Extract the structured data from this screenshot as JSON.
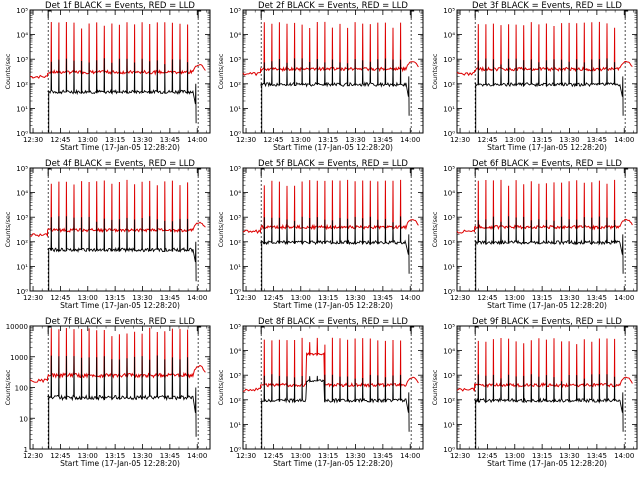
{
  "colors": {
    "events": "#000000",
    "lld": "#dd0000",
    "background": "#ffffff"
  },
  "chart_data": [
    {
      "type": "line",
      "title": "Det 1f BLACK = Events, RED = LLD",
      "xlabel": "Start Time (17-Jan-05 12:28:20)",
      "ylabel": "Counts/sec",
      "yscale": "log",
      "ylim": [
        1,
        100000
      ],
      "y_tick_labels": [
        "10⁰",
        "10¹",
        "10²",
        "10³",
        "10⁴",
        "10⁵"
      ],
      "x_tick_labels": [
        "12:30",
        "12:45",
        "13:00",
        "13:15",
        "13:30",
        "13:45",
        "14:00"
      ],
      "series": [
        {
          "name": "BLACK = Events",
          "base": 50,
          "peak": 1100
        },
        {
          "name": "RED = LLD",
          "base": 300,
          "peak": 30000
        }
      ],
      "variant": "normal"
    },
    {
      "type": "line",
      "title": "Det 2f BLACK = Events, RED = LLD",
      "xlabel": "Start Time (17-Jan-05 12:28:20)",
      "ylabel": "Counts/sec",
      "yscale": "log",
      "ylim": [
        1,
        100000
      ],
      "y_tick_labels": [
        "10⁰",
        "10¹",
        "10²",
        "10³",
        "10⁴",
        "10⁵"
      ],
      "x_tick_labels": [
        "12:30",
        "12:45",
        "13:00",
        "13:15",
        "13:30",
        "13:45",
        "14:00"
      ],
      "series": [
        {
          "name": "BLACK = Events",
          "base": 100,
          "peak": 1100
        },
        {
          "name": "RED = LLD",
          "base": 400,
          "peak": 30000
        }
      ],
      "variant": "normal"
    },
    {
      "type": "line",
      "title": "Det 3f BLACK = Events, RED = LLD",
      "xlabel": "Start Time (17-Jan-05 12:28:20)",
      "ylabel": "Counts/sec",
      "yscale": "log",
      "ylim": [
        1,
        100000
      ],
      "y_tick_labels": [
        "10⁰",
        "10¹",
        "10²",
        "10³",
        "10⁴",
        "10⁵"
      ],
      "x_tick_labels": [
        "12:30",
        "12:45",
        "13:00",
        "13:15",
        "13:30",
        "13:45",
        "14:00"
      ],
      "series": [
        {
          "name": "BLACK = Events",
          "base": 100,
          "peak": 1100
        },
        {
          "name": "RED = LLD",
          "base": 400,
          "peak": 30000
        }
      ],
      "variant": "normal"
    },
    {
      "type": "line",
      "title": "Det 4f BLACK = Events, RED = LLD",
      "xlabel": "Start Time (17-Jan-05 12:28:20)",
      "ylabel": "Counts/sec",
      "yscale": "log",
      "ylim": [
        1,
        100000
      ],
      "y_tick_labels": [
        "10⁰",
        "10¹",
        "10²",
        "10³",
        "10⁴",
        "10⁵"
      ],
      "x_tick_labels": [
        "12:30",
        "12:45",
        "13:00",
        "13:15",
        "13:30",
        "13:45",
        "14:00"
      ],
      "series": [
        {
          "name": "BLACK = Events",
          "base": 50,
          "peak": 1100
        },
        {
          "name": "RED = LLD",
          "base": 300,
          "peak": 30000
        }
      ],
      "variant": "normal"
    },
    {
      "type": "line",
      "title": "Det 5f BLACK = Events, RED = LLD",
      "xlabel": "Start Time (17-Jan-05 12:28:20)",
      "ylabel": "Counts/sec",
      "yscale": "log",
      "ylim": [
        1,
        100000
      ],
      "y_tick_labels": [
        "10⁰",
        "10¹",
        "10²",
        "10³",
        "10⁴",
        "10⁵"
      ],
      "x_tick_labels": [
        "12:30",
        "12:45",
        "13:00",
        "13:15",
        "13:30",
        "13:45",
        "14:00"
      ],
      "series": [
        {
          "name": "BLACK = Events",
          "base": 100,
          "peak": 1100
        },
        {
          "name": "RED = LLD",
          "base": 400,
          "peak": 30000
        }
      ],
      "variant": "normal"
    },
    {
      "type": "line",
      "title": "Det 6f BLACK = Events, RED = LLD",
      "xlabel": "Start Time (17-Jan-05 12:28:20)",
      "ylabel": "Counts/sec",
      "yscale": "log",
      "ylim": [
        1,
        100000
      ],
      "y_tick_labels": [
        "10⁰",
        "10¹",
        "10²",
        "10³",
        "10⁴",
        "10⁵"
      ],
      "x_tick_labels": [
        "12:30",
        "12:45",
        "13:00",
        "13:15",
        "13:30",
        "13:45",
        "14:00"
      ],
      "series": [
        {
          "name": "BLACK = Events",
          "base": 100,
          "peak": 1100
        },
        {
          "name": "RED = LLD",
          "base": 400,
          "peak": 30000
        }
      ],
      "variant": "normal"
    },
    {
      "type": "line",
      "title": "Det 7f BLACK = Events, RED = LLD",
      "xlabel": "Start Time (17-Jan-05 12:28:20)",
      "ylabel": "Counts/sec",
      "yscale": "log",
      "ylim": [
        1,
        10000
      ],
      "y_tick_labels": [
        "1",
        "10",
        "100",
        "1000",
        "10000"
      ],
      "x_tick_labels": [
        "12:30",
        "12:45",
        "13:00",
        "13:15",
        "13:30",
        "13:45",
        "14:00"
      ],
      "series": [
        {
          "name": "BLACK = Events",
          "base": 50,
          "peak": 1100
        },
        {
          "name": "RED = LLD",
          "base": 250,
          "peak": 8000
        }
      ],
      "variant": "normal"
    },
    {
      "type": "line",
      "title": "Det 8f BLACK = Events, RED = LLD",
      "xlabel": "Start Time (17-Jan-05 12:28:20)",
      "ylabel": "Counts/sec",
      "yscale": "log",
      "ylim": [
        1,
        100000
      ],
      "y_tick_labels": [
        "10⁰",
        "10¹",
        "10²",
        "10³",
        "10⁴",
        "10⁵"
      ],
      "x_tick_labels": [
        "12:30",
        "12:45",
        "13:00",
        "13:15",
        "13:30",
        "13:45",
        "14:00"
      ],
      "series": [
        {
          "name": "BLACK = Events",
          "base": 100,
          "peak": 1100
        },
        {
          "name": "RED = LLD",
          "base": 400,
          "peak": 30000
        }
      ],
      "variant": "elevated"
    },
    {
      "type": "line",
      "title": "Det 9f BLACK = Events, RED = LLD",
      "xlabel": "Start Time (17-Jan-05 12:28:20)",
      "ylabel": "Counts/sec",
      "yscale": "log",
      "ylim": [
        1,
        100000
      ],
      "y_tick_labels": [
        "10⁰",
        "10¹",
        "10²",
        "10³",
        "10⁴",
        "10⁵"
      ],
      "x_tick_labels": [
        "12:30",
        "12:45",
        "13:00",
        "13:15",
        "13:30",
        "13:45",
        "14:00"
      ],
      "series": [
        {
          "name": "BLACK = Events",
          "base": 100,
          "peak": 1100
        },
        {
          "name": "RED = LLD",
          "base": 400,
          "peak": 30000
        }
      ],
      "variant": "normal"
    }
  ]
}
